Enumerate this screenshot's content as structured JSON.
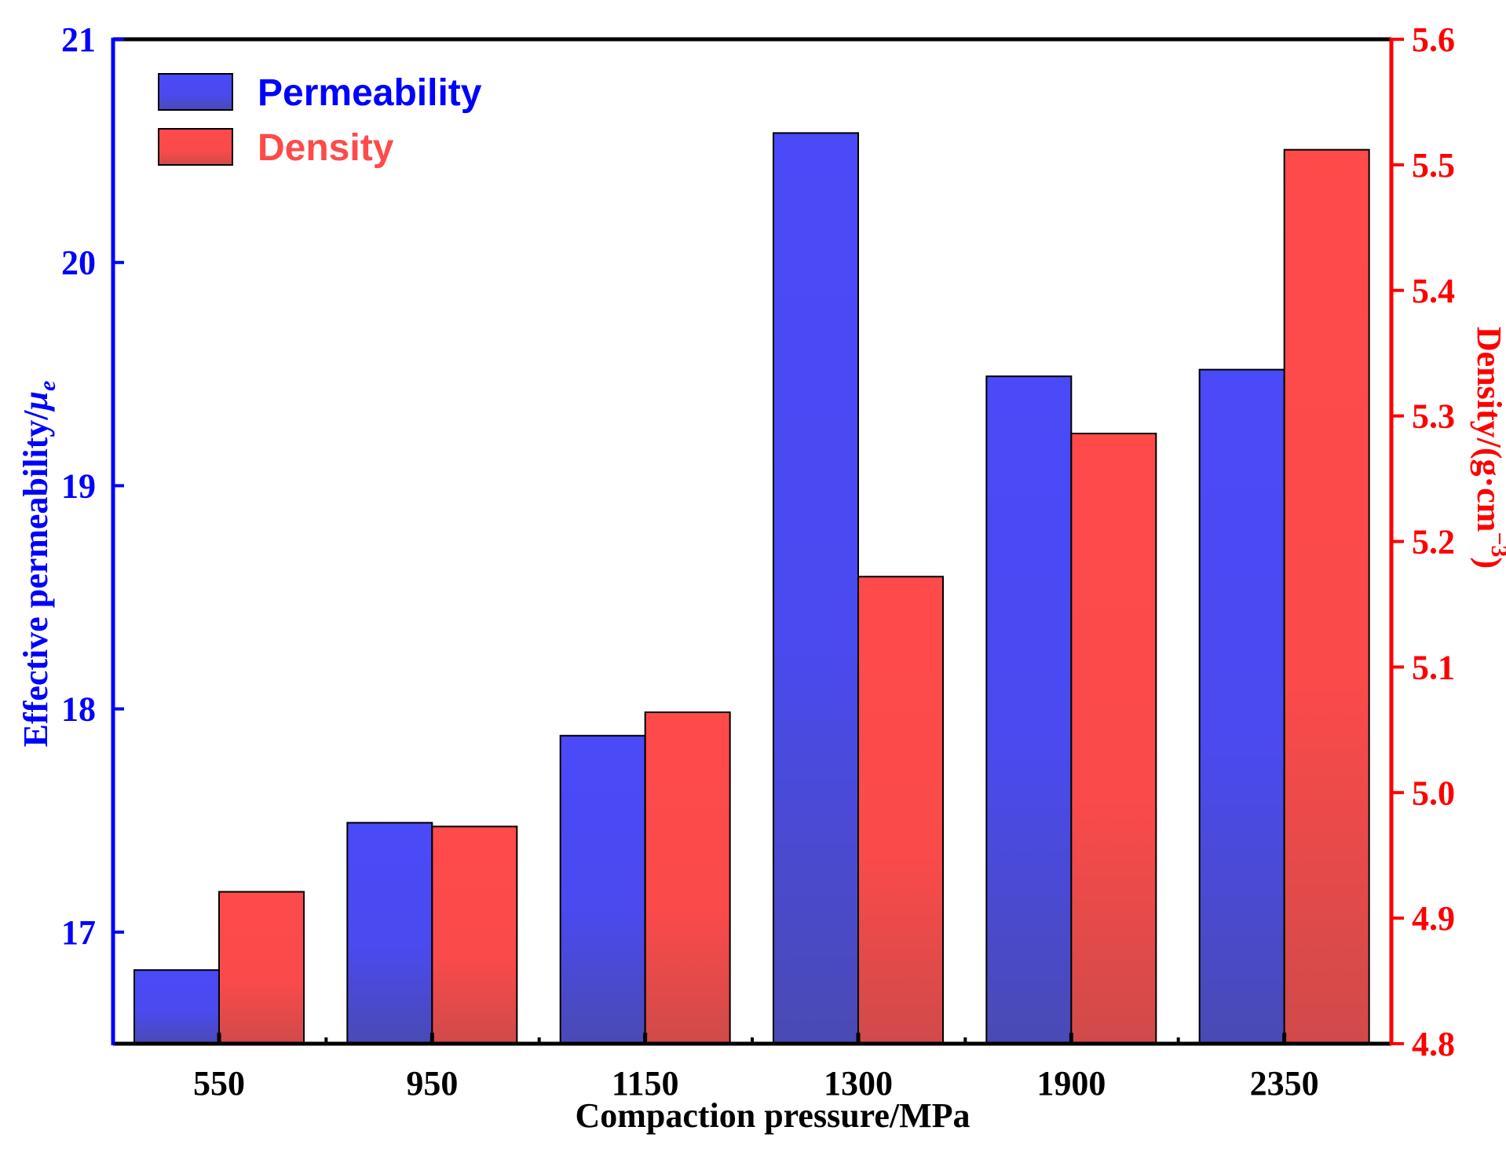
{
  "chart_data": {
    "type": "bar",
    "categories": [
      "550",
      "950",
      "1150",
      "1300",
      "1900",
      "2350"
    ],
    "xlabel": "Compaction pressure/MPa",
    "series": [
      {
        "name": "Permeability",
        "axis": "left",
        "color": "#4a4af5",
        "gradient_end": "#4a4ab8",
        "values": [
          16.83,
          17.49,
          17.88,
          20.58,
          19.49,
          19.52
        ]
      },
      {
        "name": "Density",
        "axis": "right",
        "color": "#ff4a4a",
        "gradient_end": "#d44a4a",
        "values": [
          4.921,
          4.973,
          5.064,
          5.172,
          5.286,
          5.512
        ]
      }
    ],
    "y_left": {
      "label_main": "Effective permeability/",
      "label_symbol": "μ",
      "label_subscript": "e",
      "lim": [
        16.5,
        21
      ],
      "ticks": [
        "17",
        "18",
        "19",
        "20",
        "21"
      ],
      "color": "#0000ff"
    },
    "y_right": {
      "label_main": "Density/(g·cm",
      "label_sup": "−3",
      "label_close": ")",
      "lim": [
        4.8,
        5.6
      ],
      "ticks": [
        "4.8",
        "4.9",
        "5.0",
        "5.1",
        "5.2",
        "5.3",
        "5.4",
        "5.5",
        "5.6"
      ],
      "color": "#ff0000"
    },
    "legend": {
      "position": "top-left"
    },
    "grid": false
  }
}
